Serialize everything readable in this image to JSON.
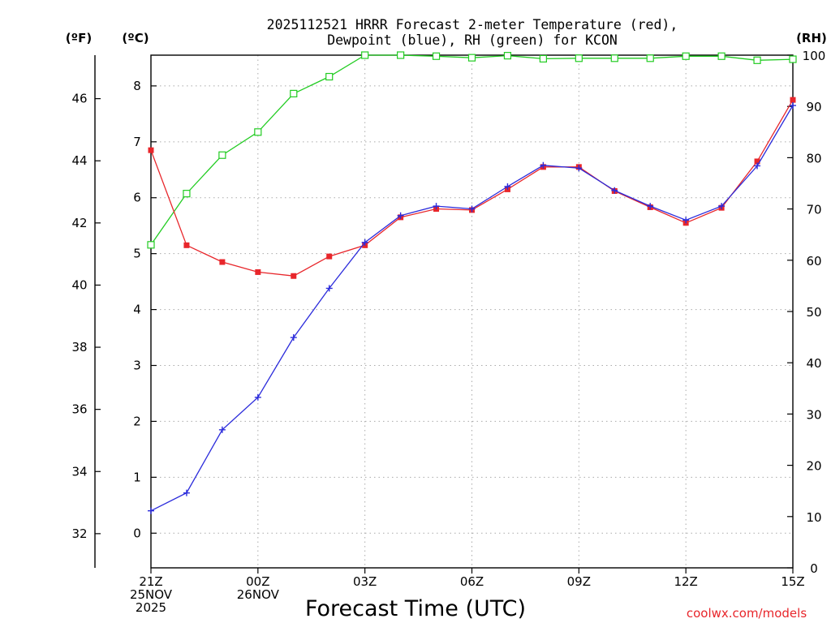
{
  "chart_data": {
    "type": "line",
    "title": [
      "2025112521 HRRR Forecast 2-meter Temperature (red),",
      "Dewpoint (blue), RH (green) for KCON"
    ],
    "xlabel": "Forecast Time (UTC)",
    "credit": "coolwx.com/models",
    "units": {
      "fahrenheit": "(ºF)",
      "celsius": "(ºC)",
      "rh": "(RH)"
    },
    "x_hours": [
      0,
      1,
      2,
      3,
      4,
      5,
      6,
      7,
      8,
      9,
      10,
      11,
      12,
      13,
      14,
      15,
      16,
      17,
      18
    ],
    "xlim": [
      0,
      18
    ],
    "x_ticks": [
      {
        "hour": 0,
        "lines": [
          "21Z",
          "25NOV",
          "2025"
        ]
      },
      {
        "hour": 3,
        "lines": [
          "00Z",
          "26NOV"
        ]
      },
      {
        "hour": 6,
        "lines": [
          "03Z"
        ]
      },
      {
        "hour": 9,
        "lines": [
          "06Z"
        ]
      },
      {
        "hour": 12,
        "lines": [
          "09Z"
        ]
      },
      {
        "hour": 15,
        "lines": [
          "12Z"
        ]
      },
      {
        "hour": 18,
        "lines": [
          "15Z"
        ]
      }
    ],
    "y_celsius": {
      "lim": [
        -0.62,
        8.55
      ],
      "ticks": [
        0,
        1,
        2,
        3,
        4,
        5,
        6,
        7,
        8
      ]
    },
    "y_fahrenheit": {
      "lim": [
        30.9,
        47.4
      ],
      "ticks": [
        32,
        34,
        36,
        38,
        40,
        42,
        44,
        46
      ]
    },
    "y_rh": {
      "lim": [
        0,
        100
      ],
      "ticks": [
        0,
        10,
        20,
        30,
        40,
        50,
        60,
        70,
        80,
        90,
        100
      ]
    },
    "series": [
      {
        "name": "Temperature",
        "color": "#e8262b",
        "axis": "celsius",
        "marker": "filled-square",
        "values": [
          6.85,
          5.15,
          4.85,
          4.67,
          4.6,
          4.95,
          5.15,
          5.65,
          5.8,
          5.78,
          6.15,
          6.55,
          6.55,
          6.12,
          5.83,
          5.55,
          5.82,
          6.65,
          7.75
        ]
      },
      {
        "name": "Dewpoint",
        "color": "#2b2bdb",
        "axis": "celsius",
        "marker": "plus",
        "values": [
          0.4,
          0.72,
          1.85,
          2.43,
          3.5,
          4.38,
          5.2,
          5.68,
          5.85,
          5.8,
          6.2,
          6.58,
          6.53,
          6.13,
          5.85,
          5.6,
          5.85,
          6.57,
          7.65
        ]
      },
      {
        "name": "RH",
        "color": "#22cc22",
        "axis": "rh",
        "marker": "open-square",
        "values": [
          63,
          73,
          80.5,
          85,
          92.5,
          95.8,
          100,
          100,
          99.8,
          99.5,
          99.9,
          99.3,
          99.4,
          99.4,
          99.4,
          99.8,
          99.8,
          99,
          99.2
        ]
      }
    ]
  }
}
